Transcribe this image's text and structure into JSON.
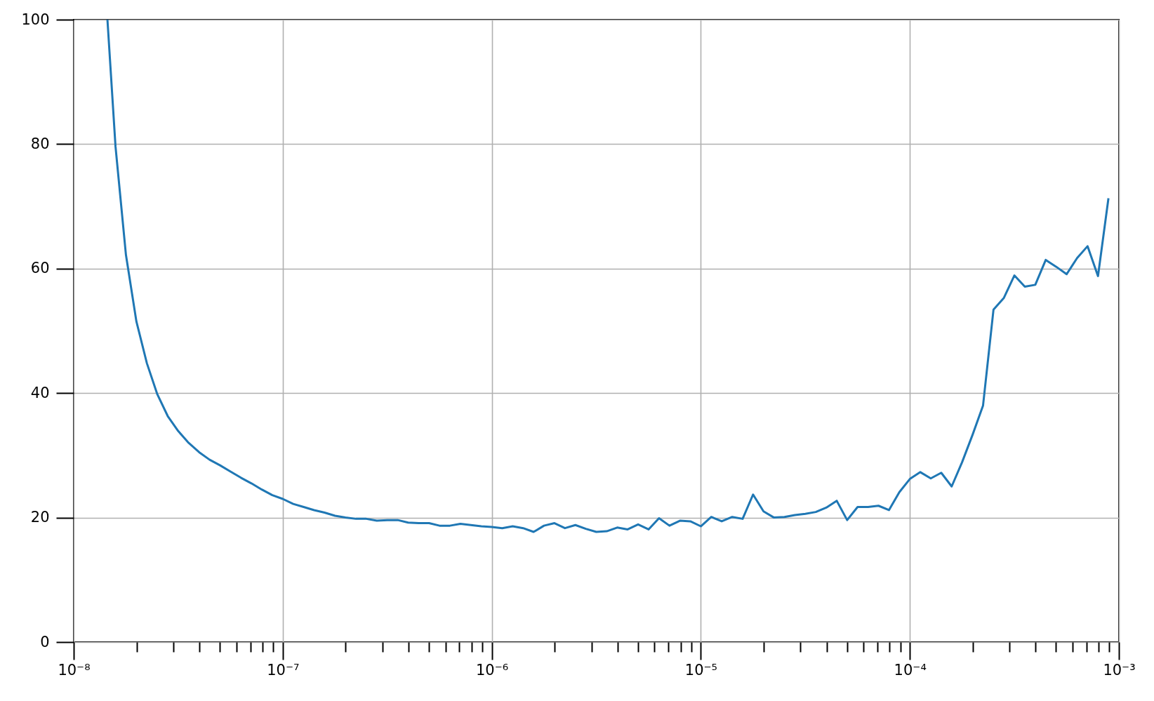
{
  "chart_data": {
    "type": "line",
    "log": "x",
    "grid": true,
    "line_style": "solid",
    "xlim": [
      1e-08,
      0.001
    ],
    "ylim": [
      0,
      100
    ],
    "xticks": [
      {
        "value": 1e-08,
        "label": "10⁻⁸"
      },
      {
        "value": 2e-08,
        "label": null
      },
      {
        "value": 3e-08,
        "label": null
      },
      {
        "value": 4e-08,
        "label": null
      },
      {
        "value": 5e-08,
        "label": null
      },
      {
        "value": 6e-08,
        "label": null
      },
      {
        "value": 7e-08,
        "label": null
      },
      {
        "value": 8e-08,
        "label": null
      },
      {
        "value": 9e-08,
        "label": null
      },
      {
        "value": 1e-07,
        "label": "10⁻⁷"
      },
      {
        "value": 2e-07,
        "label": null
      },
      {
        "value": 3e-07,
        "label": null
      },
      {
        "value": 4e-07,
        "label": null
      },
      {
        "value": 5e-07,
        "label": null
      },
      {
        "value": 6e-07,
        "label": null
      },
      {
        "value": 7e-07,
        "label": null
      },
      {
        "value": 8e-07,
        "label": null
      },
      {
        "value": 9e-07,
        "label": null
      },
      {
        "value": 1e-06,
        "label": "10⁻⁶"
      },
      {
        "value": 2e-06,
        "label": null
      },
      {
        "value": 3e-06,
        "label": null
      },
      {
        "value": 4e-06,
        "label": null
      },
      {
        "value": 5e-06,
        "label": null
      },
      {
        "value": 6e-06,
        "label": null
      },
      {
        "value": 7e-06,
        "label": null
      },
      {
        "value": 8e-06,
        "label": null
      },
      {
        "value": 9e-06,
        "label": null
      },
      {
        "value": 1e-05,
        "label": "10⁻⁵"
      },
      {
        "value": 2e-05,
        "label": null
      },
      {
        "value": 3e-05,
        "label": null
      },
      {
        "value": 4e-05,
        "label": null
      },
      {
        "value": 5e-05,
        "label": null
      },
      {
        "value": 6e-05,
        "label": null
      },
      {
        "value": 7e-05,
        "label": null
      },
      {
        "value": 8e-05,
        "label": null
      },
      {
        "value": 9e-05,
        "label": null
      },
      {
        "value": 0.0001,
        "label": "10⁻⁴"
      },
      {
        "value": 0.0002,
        "label": null
      },
      {
        "value": 0.0003,
        "label": null
      },
      {
        "value": 0.0004,
        "label": null
      },
      {
        "value": 0.0005,
        "label": null
      },
      {
        "value": 0.0006,
        "label": null
      },
      {
        "value": 0.0007,
        "label": null
      },
      {
        "value": 0.0008,
        "label": null
      },
      {
        "value": 0.0009,
        "label": null
      },
      {
        "value": 0.001,
        "label": "10⁻³"
      }
    ],
    "yticks": [
      0,
      20,
      40,
      60,
      80,
      100
    ],
    "x": [
      1.45e-08,
      1.585e-08,
      1.778e-08,
      1.995e-08,
      2.239e-08,
      2.512e-08,
      2.818e-08,
      3.162e-08,
      3.548e-08,
      3.981e-08,
      4.467e-08,
      5.012e-08,
      5.623e-08,
      6.31e-08,
      7.079e-08,
      7.943e-08,
      8.913e-08,
      1e-07,
      1.122e-07,
      1.259e-07,
      1.413e-07,
      1.585e-07,
      1.778e-07,
      1.995e-07,
      2.239e-07,
      2.512e-07,
      2.818e-07,
      3.162e-07,
      3.548e-07,
      3.981e-07,
      4.467e-07,
      5.012e-07,
      5.623e-07,
      6.31e-07,
      7.079e-07,
      7.943e-07,
      8.913e-07,
      1e-06,
      1.122e-06,
      1.259e-06,
      1.413e-06,
      1.585e-06,
      1.778e-06,
      1.995e-06,
      2.239e-06,
      2.512e-06,
      2.818e-06,
      3.162e-06,
      3.548e-06,
      3.981e-06,
      4.467e-06,
      5.012e-06,
      5.623e-06,
      6.31e-06,
      7.079e-06,
      7.943e-06,
      8.913e-06,
      1e-05,
      1.122e-05,
      1.259e-05,
      1.413e-05,
      1.585e-05,
      1.778e-05,
      1.995e-05,
      2.239e-05,
      2.512e-05,
      2.818e-05,
      3.162e-05,
      3.548e-05,
      3.981e-05,
      4.467e-05,
      5.012e-05,
      5.623e-05,
      6.31e-05,
      7.079e-05,
      7.943e-05,
      8.913e-05,
      0.0001,
      0.0001122,
      0.0001259,
      0.0001413,
      0.0001585,
      0.0001778,
      0.0001995,
      0.0002239,
      0.0002512,
      0.0002818,
      0.0003162,
      0.0003548,
      0.0003981,
      0.0004467,
      0.0005012,
      0.0005623,
      0.000631,
      0.0007079,
      0.0007943,
      0.0008913
    ],
    "series": [
      {
        "color": "#1f77b4",
        "values": [
          100,
          79.6,
          62.2,
          51.5,
          44.8,
          39.8,
          36.3,
          33.9,
          32.0,
          30.5,
          29.3,
          28.4,
          27.4,
          26.4,
          25.5,
          24.5,
          23.6,
          23.0,
          22.2,
          21.7,
          21.2,
          20.8,
          20.3,
          20.0,
          19.8,
          19.8,
          19.5,
          19.6,
          19.6,
          19.2,
          19.1,
          19.1,
          18.7,
          18.7,
          19.0,
          18.8,
          18.6,
          18.5,
          18.3,
          18.6,
          18.3,
          17.7,
          18.7,
          19.1,
          18.3,
          18.8,
          18.2,
          17.7,
          17.8,
          18.4,
          18.1,
          18.9,
          18.1,
          19.9,
          18.7,
          19.5,
          19.4,
          18.6,
          20.1,
          19.4,
          20.1,
          19.8,
          23.7,
          21.0,
          20.0,
          20.1,
          20.4,
          20.6,
          20.9,
          21.6,
          22.7,
          19.6,
          21.7,
          21.7,
          21.9,
          21.2,
          24.1,
          26.2,
          27.3,
          26.3,
          27.2,
          25.0,
          28.9,
          33.3,
          38.0,
          53.4,
          55.3,
          58.9,
          57.1,
          57.4,
          61.4,
          60.3,
          59.1,
          61.7,
          63.6,
          58.8,
          71.3
        ]
      }
    ]
  }
}
